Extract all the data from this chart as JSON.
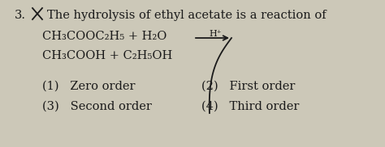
{
  "bg_color": "#ccc8b8",
  "question_num": "3.",
  "title_text": "The hydrolysis of ethyl acetate is a reaction of",
  "line1_left": "CH₃COOC₂H₅ + H₂O",
  "catalyst": "H⁺",
  "line2": "CH₃COOH + C₂H₅OH",
  "opt1": "(1)   Zero order",
  "opt2": "(2)   First order",
  "opt3": "(3)   Second order",
  "opt4": "(4)   Third order",
  "text_color": "#1a1a1a",
  "font_size": 10.5
}
